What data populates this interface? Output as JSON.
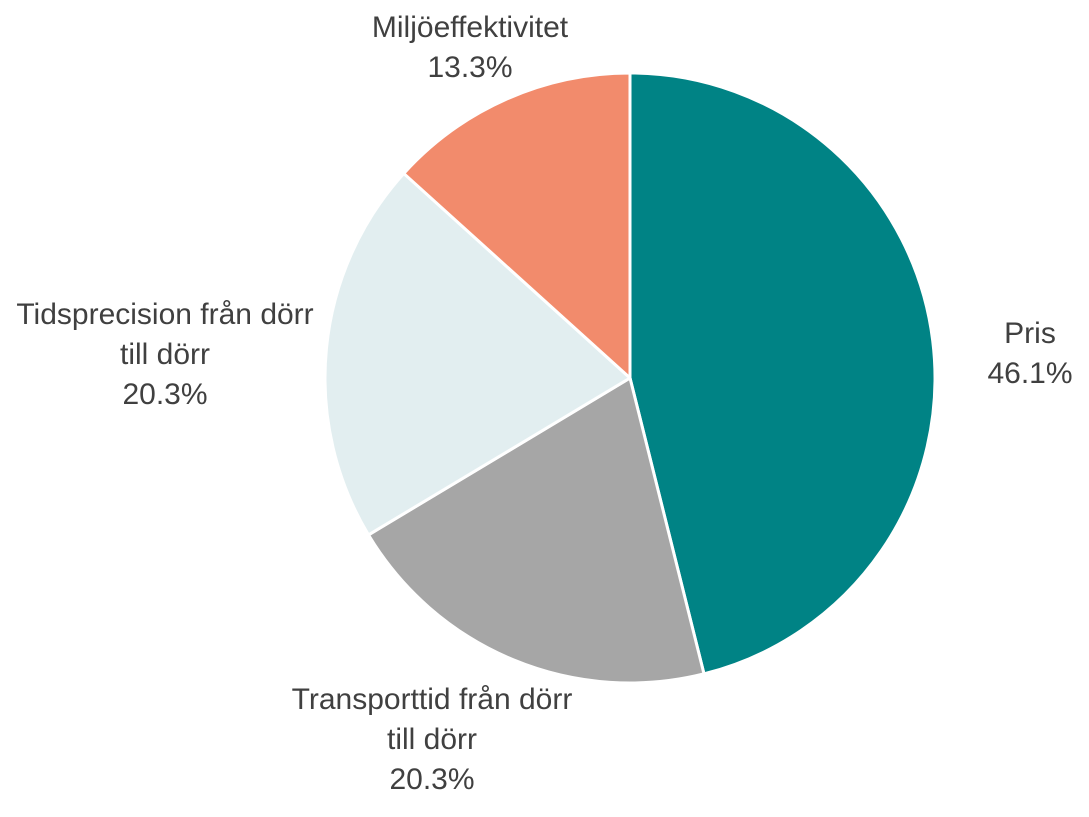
{
  "chart_data": {
    "type": "pie",
    "categories": [
      "Pris",
      "Transporttid från dörr till dörr",
      "Tidsprecision från dörr till dörr",
      "Miljöeffektivitet"
    ],
    "values": [
      46.1,
      20.3,
      20.3,
      13.3
    ],
    "value_labels": [
      "46.1%",
      "20.3%",
      "20.3%",
      "13.3%"
    ],
    "colors": [
      "#008385",
      "#a6a6a6",
      "#e2eef0",
      "#f28b6c"
    ]
  }
}
